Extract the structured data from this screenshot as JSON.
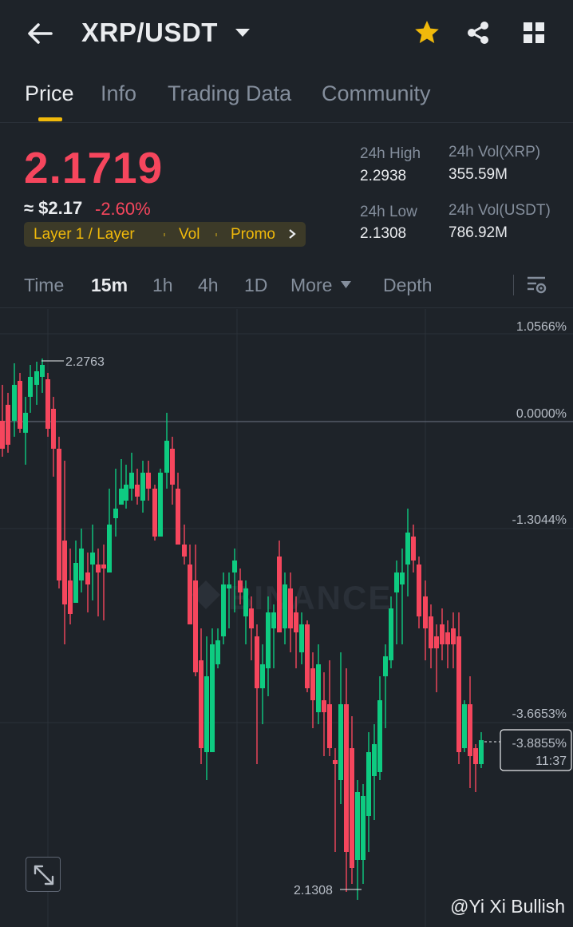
{
  "header": {
    "pair": "XRP/USDT",
    "icons": [
      "back-arrow-icon",
      "caret-down-icon",
      "star-icon",
      "share-icon",
      "grid-icon"
    ],
    "favorite_color": "#f0b90b"
  },
  "tabs": [
    {
      "label": "Price",
      "active": true
    },
    {
      "label": "Info",
      "active": false
    },
    {
      "label": "Trading Data",
      "active": false
    },
    {
      "label": "Community",
      "active": false
    }
  ],
  "ticker": {
    "price": "2.1719",
    "approx_usd": "≈ $2.17",
    "change": "-2.60%",
    "tags": [
      "Layer 1 / Layer",
      "Vol",
      "Promo"
    ],
    "high_label": "24h High",
    "high_value": "2.2938",
    "low_label": "24h Low",
    "low_value": "2.1308",
    "vol_base_label": "24h Vol(XRP)",
    "vol_base_value": "355.59M",
    "vol_quote_label": "24h Vol(USDT)",
    "vol_quote_value": "786.92M",
    "down_color": "#f6465d",
    "up_color": "#0ecb81"
  },
  "intervals": {
    "items": [
      "Time",
      "15m",
      "1h",
      "4h",
      "1D"
    ],
    "active": "15m",
    "more_label": "More",
    "depth_label": "Depth"
  },
  "chart": {
    "axis": {
      "top_label": "1.0566%",
      "zero_label": "0.0000%",
      "mid_label": "-1.3044%",
      "low_label": "-3.6653%"
    },
    "high_marker": "2.2763",
    "low_marker": "2.1308",
    "current_change": "-3.8855%",
    "countdown": "11:37",
    "watermark": "BINANCE"
  },
  "credit": "@Yi Xi Bullish"
}
